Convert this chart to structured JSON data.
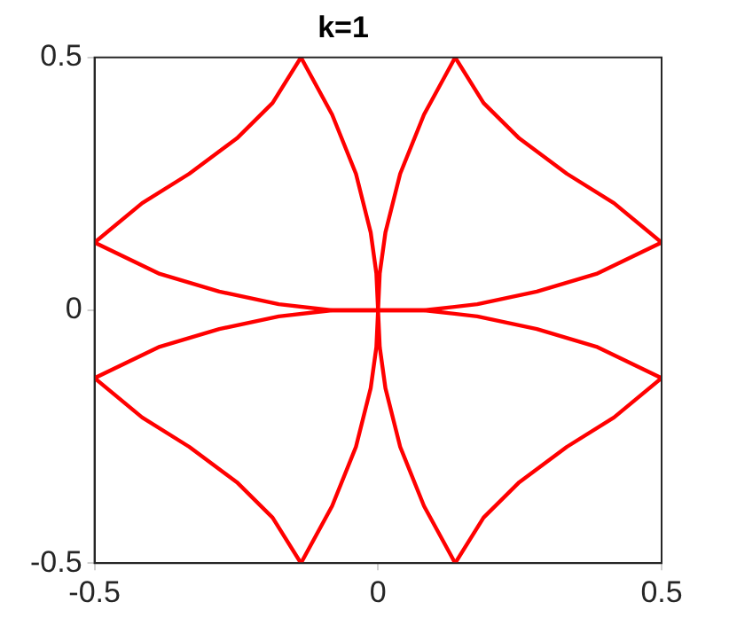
{
  "chart_data": {
    "type": "line",
    "title": "k=1",
    "xlim": [
      -0.5,
      0.5
    ],
    "ylim": [
      -0.5,
      0.5
    ],
    "xticks": [
      -0.5,
      0,
      0.5
    ],
    "yticks": [
      -0.5,
      0,
      0.5
    ],
    "grid": false,
    "marker": "none",
    "line_style": "solid",
    "series": [
      {
        "color": "#ff0000",
        "x": [
          -0.5,
          -0.385,
          -0.28,
          -0.175,
          -0.081,
          0,
          0.081,
          0.175,
          0.28,
          0.385,
          0.5
        ],
        "values": [
          0.134,
          0.072,
          0.037,
          0.012,
          0,
          0,
          0,
          0.012,
          0.037,
          0.072,
          0.134
        ]
      },
      {
        "color": "#ff0000",
        "x": [
          -0.5,
          -0.416,
          -0.333,
          -0.249,
          -0.186,
          -0.136
        ],
        "values": [
          0.134,
          0.212,
          0.27,
          0.34,
          0.41,
          0.5
        ]
      },
      {
        "color": "#ff0000",
        "x": [
          -0.136,
          -0.081,
          -0.039,
          -0.013,
          -0.003,
          0,
          0.003,
          0.013,
          0.039,
          0.081,
          0.136
        ],
        "values": [
          0.5,
          0.387,
          0.27,
          0.154,
          0.073,
          0,
          0.073,
          0.154,
          0.27,
          0.387,
          0.5
        ]
      },
      {
        "color": "#ff0000",
        "x": [
          0.136,
          0.186,
          0.249,
          0.333,
          0.416,
          0.5
        ],
        "values": [
          0.5,
          0.41,
          0.34,
          0.27,
          0.212,
          0.134
        ]
      },
      {
        "color": "#ff0000",
        "x": [
          -0.5,
          -0.385,
          -0.28,
          -0.175,
          -0.081,
          0,
          0.081,
          0.175,
          0.28,
          0.385,
          0.5
        ],
        "values": [
          -0.134,
          -0.072,
          -0.037,
          -0.012,
          0,
          0,
          0,
          -0.012,
          -0.037,
          -0.072,
          -0.134
        ]
      },
      {
        "color": "#ff0000",
        "x": [
          -0.5,
          -0.416,
          -0.333,
          -0.249,
          -0.186,
          -0.136
        ],
        "values": [
          -0.134,
          -0.212,
          -0.27,
          -0.34,
          -0.41,
          -0.5
        ]
      },
      {
        "color": "#ff0000",
        "x": [
          -0.136,
          -0.081,
          -0.039,
          -0.013,
          -0.003,
          0,
          0.003,
          0.013,
          0.039,
          0.081,
          0.136
        ],
        "values": [
          -0.5,
          -0.387,
          -0.27,
          -0.154,
          -0.073,
          0,
          -0.073,
          -0.154,
          -0.27,
          -0.387,
          -0.5
        ]
      },
      {
        "color": "#ff0000",
        "x": [
          0.136,
          0.186,
          0.249,
          0.333,
          0.416,
          0.5
        ],
        "values": [
          -0.5,
          -0.41,
          -0.34,
          -0.27,
          -0.212,
          -0.134
        ]
      }
    ]
  }
}
